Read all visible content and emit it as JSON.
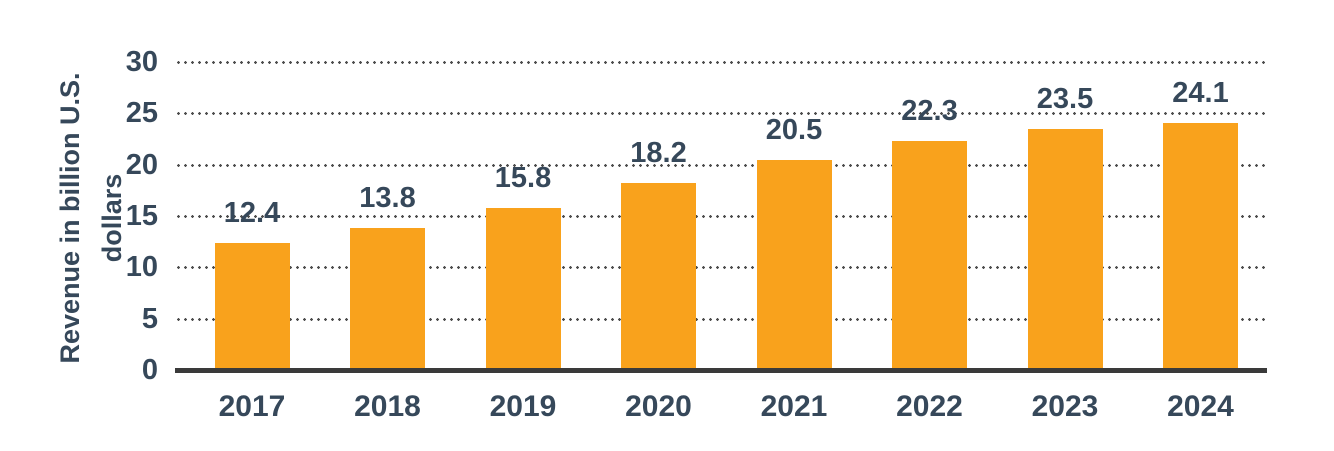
{
  "chart_data": {
    "type": "bar",
    "title": "",
    "xlabel": "",
    "ylabel": "Revenue in billion U.S.\ndollars",
    "categories": [
      "2017",
      "2018",
      "2019",
      "2020",
      "2021",
      "2022",
      "2023",
      "2024"
    ],
    "values": [
      12.4,
      13.8,
      15.8,
      18.2,
      20.5,
      22.3,
      23.5,
      24.1
    ],
    "value_labels": [
      "12.4",
      "13.8",
      "15.8",
      "18.2",
      "20.5",
      "22.3",
      "23.5",
      "24.1"
    ],
    "ylim": [
      0,
      30
    ],
    "yticks": [
      0,
      5,
      10,
      15,
      20,
      25,
      30
    ],
    "grid": "dotted horizontal lines",
    "legend": "none",
    "bar_color": "#F9A21C",
    "text_color": "#36485A",
    "grid_dot_color": "#4E4E4E",
    "axis_color": "#3A3A3A"
  }
}
